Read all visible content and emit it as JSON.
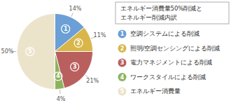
{
  "chart_data": {
    "type": "pie",
    "title": [
      "エネルギー消費量50%削減と",
      "エネルギー削減内訳"
    ],
    "categories": [
      "空調システムによる削減",
      "照明/空調センシングによる削減",
      "電力マネジメントによる削減",
      "ワークスタイルによる削減",
      "エネルギー消費量"
    ],
    "category_numbers": [
      "1",
      "2",
      "3",
      "4",
      "5"
    ],
    "values": [
      14,
      11,
      21,
      4,
      50
    ],
    "value_labels": [
      "14%",
      "11%",
      "21%",
      "4%",
      "50%"
    ],
    "colors": [
      "#6b9fd6",
      "#d8b64a",
      "#b9605f",
      "#8db35e",
      "#ece3cb"
    ],
    "data_labels": true,
    "legend": "right"
  }
}
